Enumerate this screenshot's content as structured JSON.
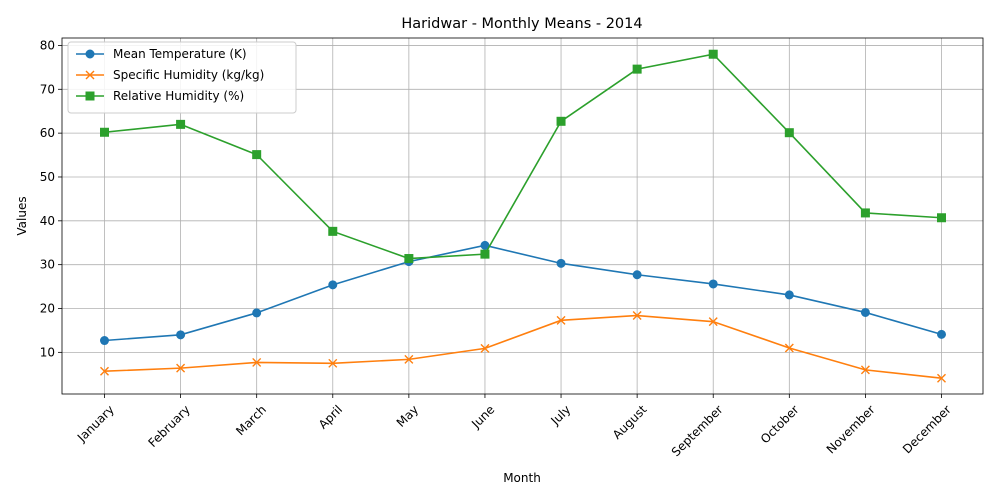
{
  "chart_data": {
    "type": "line",
    "title": "Haridwar - Monthly Means - 2014",
    "xlabel": "Month",
    "ylabel": "Values",
    "categories": [
      "January",
      "February",
      "March",
      "April",
      "May",
      "June",
      "July",
      "August",
      "September",
      "October",
      "November",
      "December"
    ],
    "ylim": [
      0.5,
      81.7
    ],
    "yticks": [
      10,
      20,
      30,
      40,
      50,
      60,
      70,
      80
    ],
    "grid": true,
    "legend_position": "upper-left",
    "series": [
      {
        "name": "Mean Temperature (K)",
        "marker": "circle",
        "color": "#1f77b4",
        "values": [
          12.7,
          14.0,
          19.0,
          25.4,
          30.7,
          34.4,
          30.3,
          27.7,
          25.6,
          23.1,
          19.1,
          14.1
        ]
      },
      {
        "name": "Specific Humidity (kg/kg)",
        "marker": "x",
        "color": "#ff7f0e",
        "values": [
          5.7,
          6.4,
          7.7,
          7.5,
          8.4,
          10.9,
          17.3,
          18.4,
          17.0,
          11.0,
          6.0,
          4.1
        ]
      },
      {
        "name": "Relative Humidity (%)",
        "marker": "square",
        "color": "#2ca02c",
        "values": [
          60.2,
          62.0,
          55.1,
          37.6,
          31.4,
          32.4,
          62.7,
          74.6,
          78.0,
          60.1,
          41.8,
          40.7
        ]
      }
    ]
  }
}
